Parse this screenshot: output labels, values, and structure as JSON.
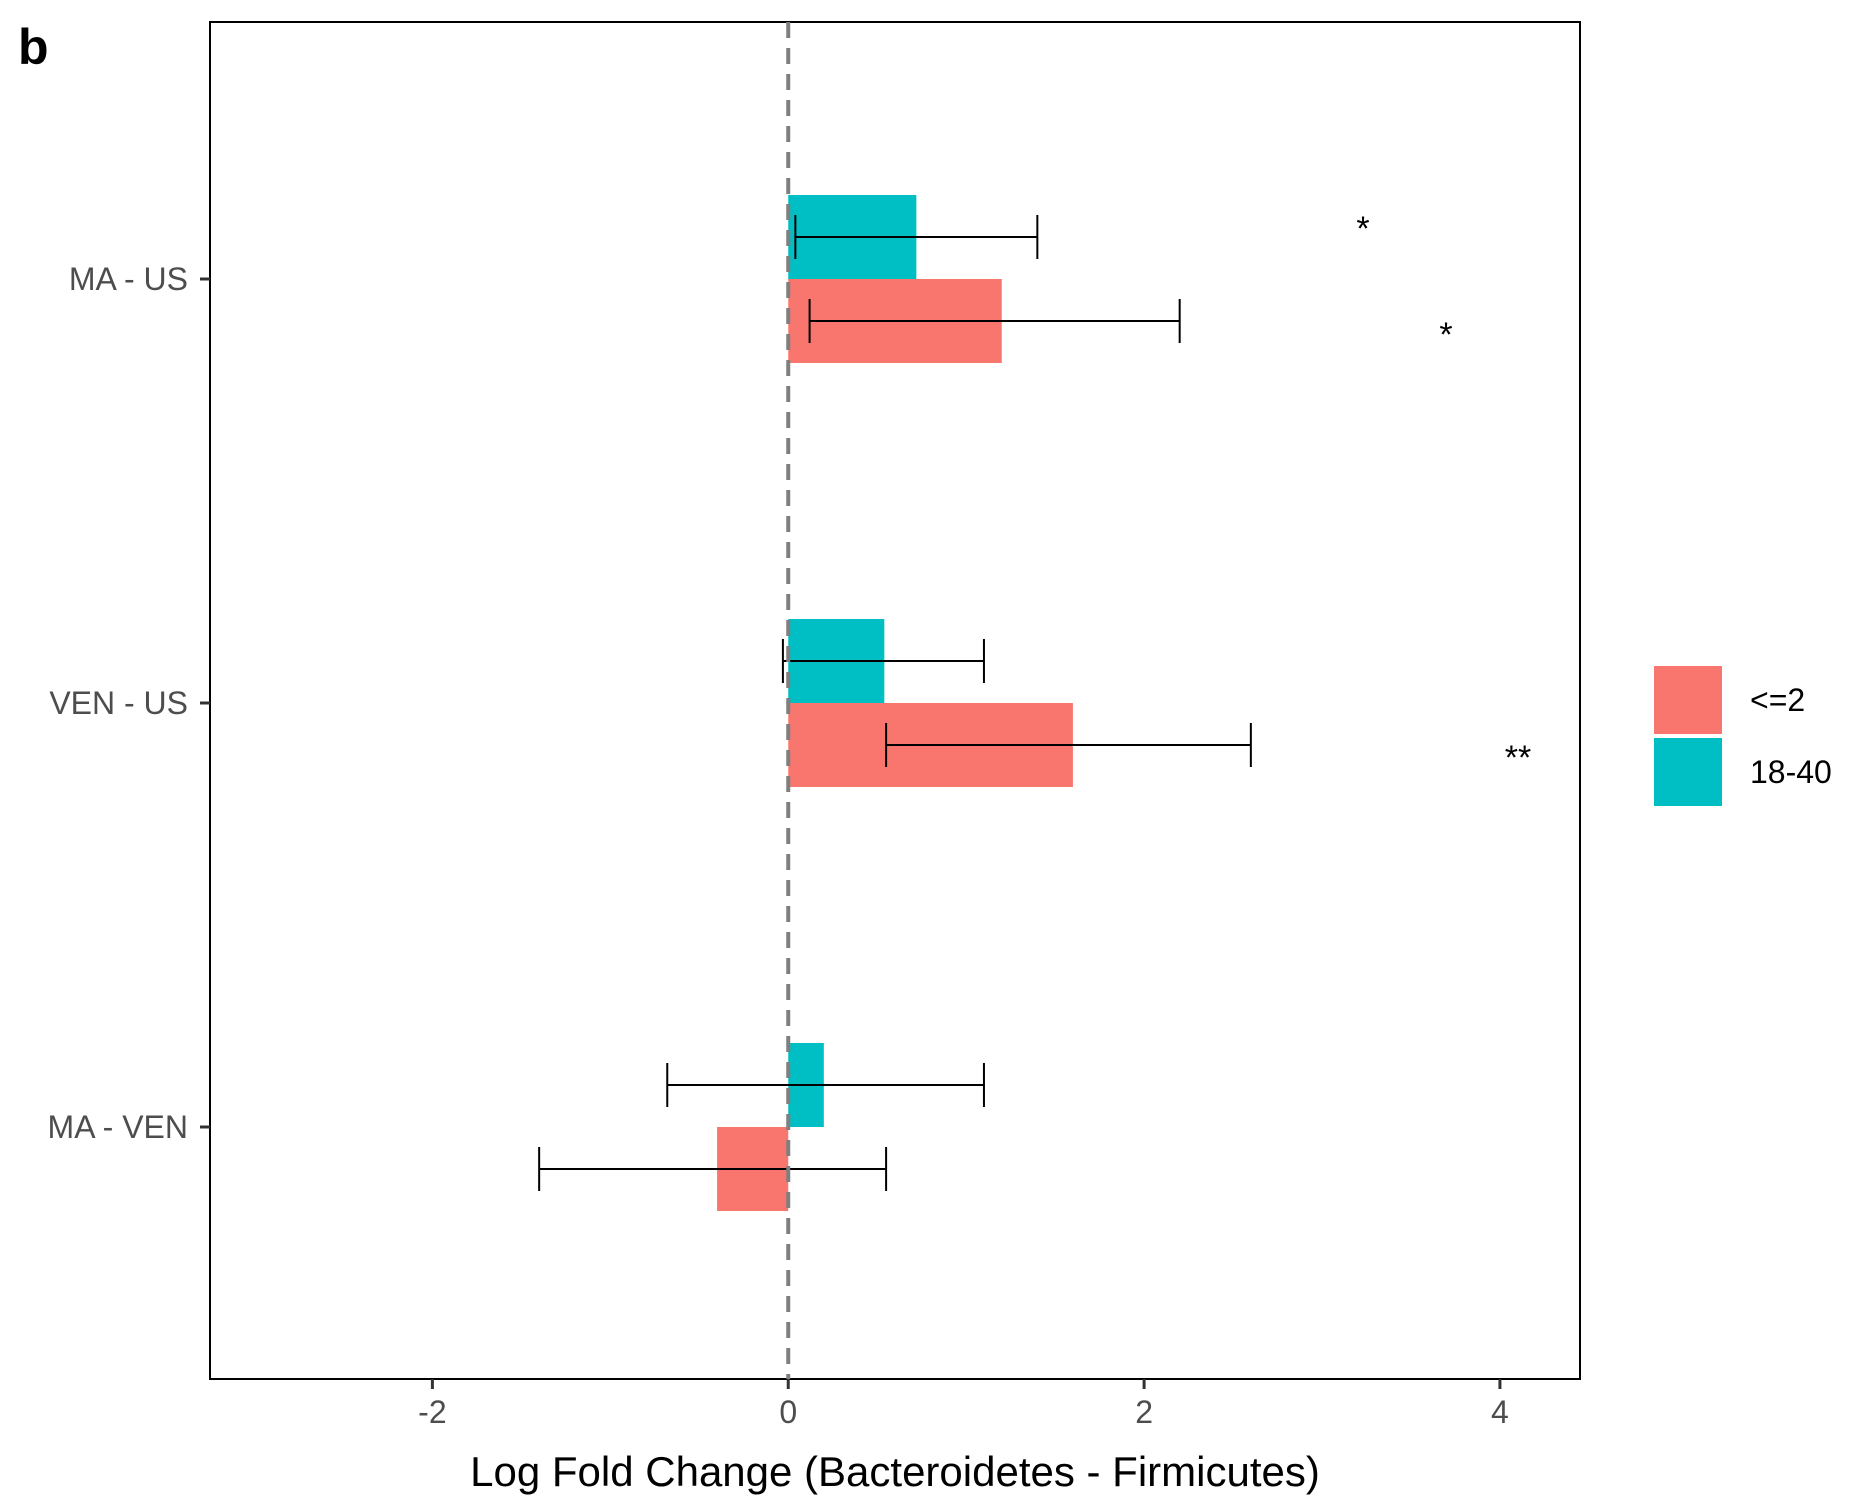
{
  "panel_label": "b",
  "chart_data": {
    "type": "bar",
    "orientation": "horizontal",
    "categories": [
      "MA - US",
      "VEN - US",
      "MA - VEN"
    ],
    "series": [
      {
        "name": "<=2",
        "color": "#F8766D",
        "values": [
          1.2,
          1.6,
          -0.4
        ],
        "error_low": [
          0.12,
          0.55,
          -1.4
        ],
        "error_high": [
          2.2,
          2.6,
          0.55
        ],
        "significance": [
          "*",
          "**",
          ""
        ]
      },
      {
        "name": "18-40",
        "color": "#00BFC4",
        "values": [
          0.72,
          0.54,
          0.2
        ],
        "error_low": [
          0.04,
          -0.03,
          -0.68
        ],
        "error_high": [
          1.4,
          1.1,
          1.1
        ],
        "significance": [
          "*",
          "",
          ""
        ]
      }
    ],
    "xlabel": "Log Fold Change (Bacteroidetes - Firmicutes)",
    "ylabel": "",
    "xlim": [
      -3.25,
      4.45
    ],
    "xticks": [
      "-2",
      "0",
      "2",
      "4"
    ],
    "xtick_values": [
      -2,
      0,
      2,
      4
    ],
    "reference_line": 0,
    "grid": false,
    "legend_position": "right"
  }
}
